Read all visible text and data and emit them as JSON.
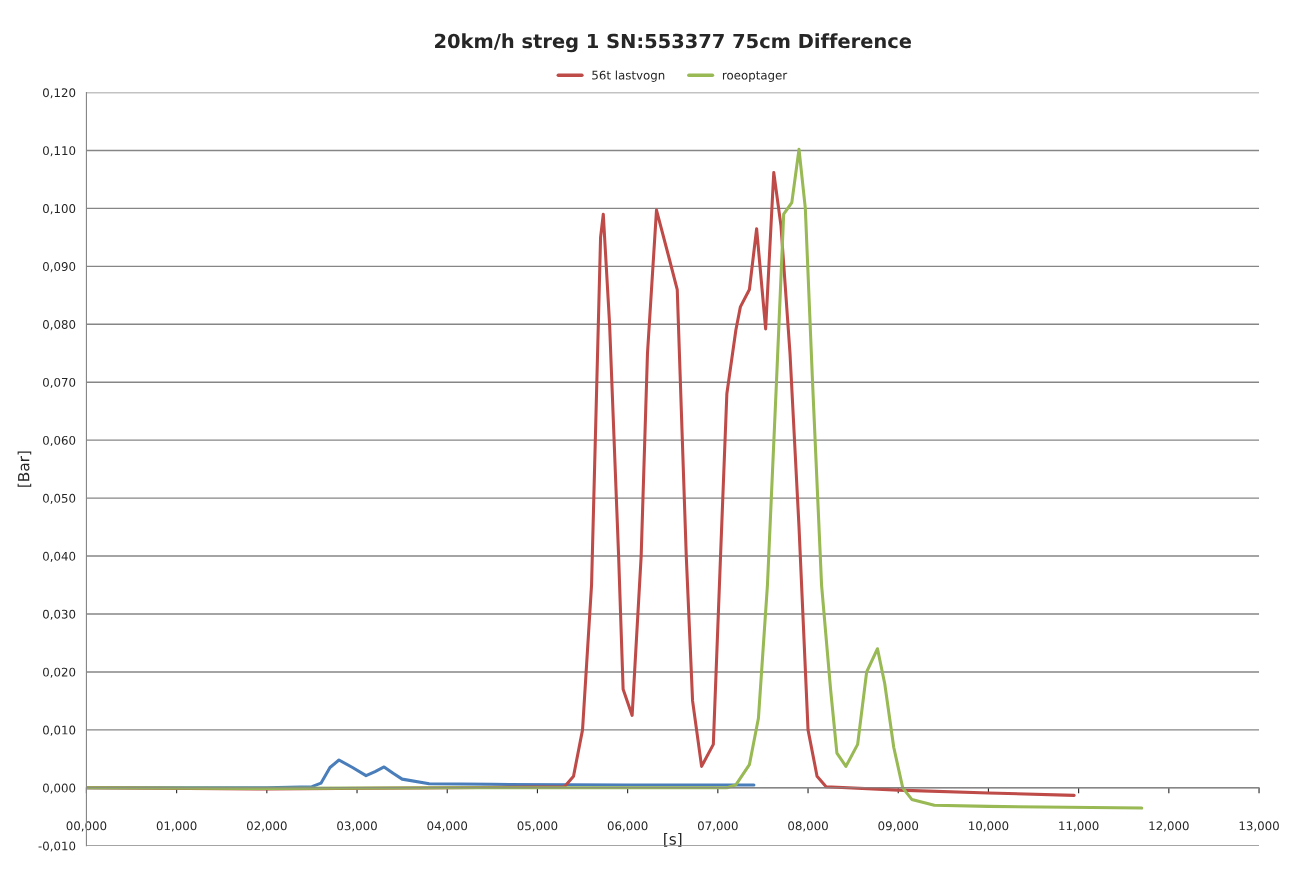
{
  "chart_data": {
    "type": "line",
    "title": "20km/h streg 1 SN:553377 75cm Difference",
    "xlabel": "[s]",
    "ylabel": "[Bar]",
    "xlim": [
      0,
      13
    ],
    "ylim": [
      -0.01,
      0.12
    ],
    "xticks": [
      {
        "value": 0,
        "label": "00,000"
      },
      {
        "value": 1,
        "label": "01,000"
      },
      {
        "value": 2,
        "label": "02,000"
      },
      {
        "value": 3,
        "label": "03,000"
      },
      {
        "value": 4,
        "label": "04,000"
      },
      {
        "value": 5,
        "label": "05,000"
      },
      {
        "value": 6,
        "label": "06,000"
      },
      {
        "value": 7,
        "label": "07,000"
      },
      {
        "value": 8,
        "label": "08,000"
      },
      {
        "value": 9,
        "label": "09,000"
      },
      {
        "value": 10,
        "label": "10,000"
      },
      {
        "value": 11,
        "label": "11,000"
      },
      {
        "value": 12,
        "label": "12,000"
      },
      {
        "value": 13,
        "label": "13,000"
      }
    ],
    "yticks": [
      {
        "value": -0.01,
        "label": "-0,010"
      },
      {
        "value": 0,
        "label": "0,000"
      },
      {
        "value": 0.01,
        "label": "0,010"
      },
      {
        "value": 0.02,
        "label": "0,020"
      },
      {
        "value": 0.03,
        "label": "0,030"
      },
      {
        "value": 0.04,
        "label": "0,040"
      },
      {
        "value": 0.05,
        "label": "0,050"
      },
      {
        "value": 0.06,
        "label": "0,060"
      },
      {
        "value": 0.07,
        "label": "0,070"
      },
      {
        "value": 0.08,
        "label": "0,080"
      },
      {
        "value": 0.09,
        "label": "0,090"
      },
      {
        "value": 0.1,
        "label": "0,100"
      },
      {
        "value": 0.11,
        "label": "0,110"
      },
      {
        "value": 0.12,
        "label": "0,120"
      }
    ],
    "grid": "y",
    "legend": "top",
    "marker": "none",
    "line_style": "solid",
    "series": [
      {
        "color": "#4a7ebb",
        "x": [
          0,
          1,
          2,
          2.5,
          2.6,
          2.7,
          2.8,
          2.95,
          3.1,
          3.2,
          3.3,
          3.4,
          3.5,
          3.8,
          4.5,
          6.0,
          7.4
        ],
        "values": [
          0,
          0,
          0,
          0.0002,
          0.0008,
          0.0035,
          0.0048,
          0.0035,
          0.0021,
          0.0028,
          0.0036,
          0.0025,
          0.0015,
          0.0007,
          0.0006,
          0.0005,
          0.0005
        ]
      },
      {
        "name": "56t lastvogn",
        "color": "#be4b48",
        "x": [
          0,
          2,
          4,
          5.3,
          5.4,
          5.5,
          5.6,
          5.65,
          5.7,
          5.73,
          5.8,
          5.9,
          5.95,
          6.05,
          6.15,
          6.22,
          6.32,
          6.45,
          6.55,
          6.65,
          6.72,
          6.82,
          6.95,
          7.03,
          7.1,
          7.2,
          7.25,
          7.35,
          7.43,
          7.53,
          7.62,
          7.7,
          7.8,
          7.9,
          8.0,
          8.1,
          8.2,
          9.0,
          10.0,
          10.95
        ],
        "values": [
          0,
          -0.0002,
          0,
          0.0002,
          0.002,
          0.01,
          0.035,
          0.065,
          0.095,
          0.099,
          0.08,
          0.04,
          0.017,
          0.0125,
          0.04,
          0.075,
          0.0997,
          0.092,
          0.086,
          0.04,
          0.015,
          0.0037,
          0.0075,
          0.04,
          0.068,
          0.079,
          0.083,
          0.086,
          0.0965,
          0.0792,
          0.1062,
          0.097,
          0.075,
          0.045,
          0.01,
          0.002,
          0.0002,
          -0.0004,
          -0.0009,
          -0.0013
        ]
      },
      {
        "name": "roeoptager",
        "color": "#98b954",
        "x": [
          0,
          2,
          4,
          6,
          7.1,
          7.2,
          7.35,
          7.45,
          7.55,
          7.65,
          7.73,
          7.82,
          7.9,
          7.97,
          8.05,
          8.15,
          8.25,
          8.32,
          8.42,
          8.55,
          8.65,
          8.77,
          8.85,
          8.95,
          9.05,
          9.15,
          9.4,
          10.0,
          11.7
        ],
        "values": [
          0,
          -0.0001,
          0,
          0,
          0,
          0.0005,
          0.004,
          0.012,
          0.035,
          0.07,
          0.099,
          0.101,
          0.1102,
          0.1,
          0.07,
          0.035,
          0.017,
          0.006,
          0.0037,
          0.0075,
          0.02,
          0.024,
          0.018,
          0.007,
          0.0,
          -0.002,
          -0.003,
          -0.0032,
          -0.0035
        ]
      }
    ]
  }
}
